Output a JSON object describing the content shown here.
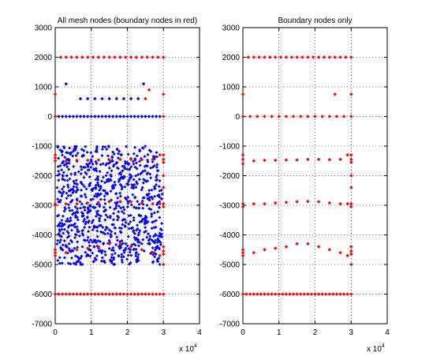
{
  "chart_data": [
    {
      "type": "scatter",
      "title": "All mesh nodes (boundary nodes in red)",
      "xlim": [
        0,
        4
      ],
      "ylim": [
        -7000,
        3000
      ],
      "x_exponent_label": "× 10^4",
      "x_multiplier_text": "x 10",
      "x_multiplier_exp": "4",
      "xticks": [
        0,
        1,
        2,
        3,
        4
      ],
      "yticks": [
        -7000,
        -6000,
        -5000,
        -4000,
        -3000,
        -2000,
        -1000,
        0,
        1000,
        2000,
        3000
      ],
      "grid": true,
      "series": [
        {
          "name": "",
          "color": "#0000ff",
          "marker": "diamond",
          "points": [
            [
              0.3,
              1100
            ],
            [
              2.45,
              1100
            ],
            [
              0.7,
              600
            ],
            [
              0.9,
              600
            ],
            [
              1.1,
              600
            ],
            [
              1.3,
              600
            ],
            [
              1.5,
              600
            ],
            [
              1.7,
              600
            ],
            [
              1.9,
              600
            ],
            [
              2.1,
              600
            ],
            [
              2.3,
              600
            ],
            [
              0.1,
              0
            ],
            [
              0.2,
              0
            ],
            [
              0.3,
              0
            ],
            [
              0.4,
              0
            ],
            [
              0.5,
              0
            ],
            [
              0.6,
              0
            ],
            [
              0.7,
              0
            ],
            [
              0.8,
              0
            ],
            [
              0.9,
              0
            ],
            [
              1.0,
              0
            ],
            [
              1.1,
              0
            ],
            [
              1.2,
              0
            ],
            [
              1.3,
              0
            ],
            [
              1.4,
              0
            ],
            [
              1.5,
              0
            ],
            [
              1.6,
              0
            ],
            [
              1.7,
              0
            ],
            [
              1.8,
              0
            ],
            [
              1.9,
              0
            ],
            [
              2.0,
              0
            ],
            [
              2.1,
              0
            ],
            [
              2.2,
              0
            ],
            [
              2.3,
              0
            ],
            [
              2.4,
              0
            ],
            [
              2.5,
              0
            ],
            [
              2.6,
              0
            ],
            [
              2.7,
              0
            ],
            [
              2.8,
              0
            ],
            [
              2.9,
              0
            ]
          ],
          "band": {
            "x_range": [
              0.05,
              2.97
            ],
            "y_range": [
              -5000,
              -1000
            ],
            "count": 900,
            "seed": 7
          }
        },
        {
          "name": "",
          "color": "#ff0000",
          "marker": "diamond",
          "points": [
            [
              0.0,
              750
            ],
            [
              3.0,
              750
            ],
            [
              2.6,
              900
            ],
            [
              2.5,
              600
            ],
            [
              0.15,
              2000
            ],
            [
              0.3,
              2000
            ],
            [
              0.45,
              2000
            ],
            [
              0.6,
              2000
            ],
            [
              0.75,
              2000
            ],
            [
              0.9,
              2000
            ],
            [
              1.05,
              2000
            ],
            [
              1.2,
              2000
            ],
            [
              1.35,
              2000
            ],
            [
              1.5,
              2000
            ],
            [
              1.65,
              2000
            ],
            [
              1.8,
              2000
            ],
            [
              1.95,
              2000
            ],
            [
              2.1,
              2000
            ],
            [
              2.25,
              2000
            ],
            [
              2.4,
              2000
            ],
            [
              2.55,
              2000
            ],
            [
              2.7,
              2000
            ],
            [
              2.85,
              2000
            ],
            [
              3.0,
              2000
            ],
            [
              0.0,
              0
            ],
            [
              3.0,
              0
            ],
            [
              0.0,
              -1400
            ],
            [
              0.0,
              -1500
            ],
            [
              0.0,
              -1300
            ],
            [
              3.0,
              -1300
            ],
            [
              3.0,
              -1450
            ],
            [
              3.0,
              -1550
            ],
            [
              0.3,
              -1500
            ],
            [
              0.6,
              -1480
            ],
            [
              0.9,
              -1480
            ],
            [
              1.2,
              -1470
            ],
            [
              1.5,
              -1470
            ],
            [
              1.8,
              -1450
            ],
            [
              2.1,
              -1450
            ],
            [
              2.4,
              -1460
            ],
            [
              2.7,
              -1450
            ],
            [
              2.9,
              -1300
            ],
            [
              3.0,
              -2000
            ],
            [
              3.0,
              -2400
            ],
            [
              0.0,
              -3000
            ],
            [
              0.0,
              -2950
            ],
            [
              3.0,
              -2950
            ],
            [
              3.0,
              -3050
            ],
            [
              0.3,
              -2950
            ],
            [
              0.6,
              -2950
            ],
            [
              0.9,
              -2920
            ],
            [
              1.2,
              -2900
            ],
            [
              1.5,
              -2880
            ],
            [
              1.8,
              -2870
            ],
            [
              2.1,
              -2880
            ],
            [
              2.4,
              -2920
            ],
            [
              2.7,
              -2950
            ],
            [
              2.9,
              -2950
            ],
            [
              0.0,
              -4500
            ],
            [
              0.0,
              -4600
            ],
            [
              0.0,
              -4700
            ],
            [
              3.0,
              -4400
            ],
            [
              3.0,
              -4550
            ],
            [
              3.0,
              -4650
            ],
            [
              0.3,
              -4600
            ],
            [
              0.6,
              -4500
            ],
            [
              0.9,
              -4450
            ],
            [
              1.2,
              -4400
            ],
            [
              1.5,
              -4300
            ],
            [
              1.8,
              -4300
            ],
            [
              2.1,
              -4400
            ],
            [
              2.4,
              -4500
            ],
            [
              2.7,
              -4600
            ],
            [
              2.9,
              -4700
            ],
            [
              3.0,
              -5000
            ],
            [
              0.0,
              -6000
            ],
            [
              0.1,
              -6000
            ],
            [
              0.2,
              -6000
            ],
            [
              0.3,
              -6000
            ],
            [
              0.4,
              -6000
            ],
            [
              0.5,
              -6000
            ],
            [
              0.6,
              -6000
            ],
            [
              0.7,
              -6000
            ],
            [
              0.8,
              -6000
            ],
            [
              0.9,
              -6000
            ],
            [
              1.0,
              -6000
            ],
            [
              1.1,
              -6000
            ],
            [
              1.2,
              -6000
            ],
            [
              1.3,
              -6000
            ],
            [
              1.4,
              -6000
            ],
            [
              1.5,
              -6000
            ],
            [
              1.6,
              -6000
            ],
            [
              1.7,
              -6000
            ],
            [
              1.8,
              -6000
            ],
            [
              1.9,
              -6000
            ],
            [
              2.0,
              -6000
            ],
            [
              2.1,
              -6000
            ],
            [
              2.2,
              -6000
            ],
            [
              2.3,
              -6000
            ],
            [
              2.4,
              -6000
            ],
            [
              2.5,
              -6000
            ],
            [
              2.6,
              -6000
            ],
            [
              2.7,
              -6000
            ],
            [
              2.8,
              -6000
            ],
            [
              2.9,
              -6000
            ],
            [
              3.0,
              -6000
            ]
          ]
        }
      ]
    },
    {
      "type": "scatter",
      "title": "Boundary nodes only",
      "xlim": [
        0,
        4
      ],
      "ylim": [
        -7000,
        3000
      ],
      "x_exponent_label": "× 10^4",
      "x_multiplier_text": "x 10",
      "x_multiplier_exp": "4",
      "xticks": [
        0,
        1,
        2,
        3,
        4
      ],
      "yticks": [
        -7000,
        -6000,
        -5000,
        -4000,
        -3000,
        -2000,
        -1000,
        0,
        1000,
        2000,
        3000
      ],
      "grid": true,
      "series": [
        {
          "name": "",
          "color": "#ff0000",
          "marker": "diamond",
          "points": [
            [
              0.0,
              750
            ],
            [
              3.0,
              750
            ],
            [
              2.55,
              750
            ],
            [
              0.15,
              2000
            ],
            [
              0.3,
              2000
            ],
            [
              0.45,
              2000
            ],
            [
              0.6,
              2000
            ],
            [
              0.75,
              2000
            ],
            [
              0.9,
              2000
            ],
            [
              1.05,
              2000
            ],
            [
              1.2,
              2000
            ],
            [
              1.35,
              2000
            ],
            [
              1.5,
              2000
            ],
            [
              1.65,
              2000
            ],
            [
              1.8,
              2000
            ],
            [
              1.95,
              2000
            ],
            [
              2.1,
              2000
            ],
            [
              2.25,
              2000
            ],
            [
              2.4,
              2000
            ],
            [
              2.55,
              2000
            ],
            [
              2.7,
              2000
            ],
            [
              2.85,
              2000
            ],
            [
              3.0,
              2000
            ],
            [
              0.0,
              0
            ],
            [
              0.2,
              0
            ],
            [
              0.4,
              0
            ],
            [
              0.6,
              0
            ],
            [
              0.8,
              0
            ],
            [
              1.0,
              0
            ],
            [
              1.2,
              0
            ],
            [
              1.4,
              0
            ],
            [
              1.6,
              0
            ],
            [
              1.8,
              0
            ],
            [
              2.0,
              0
            ],
            [
              2.2,
              0
            ],
            [
              2.4,
              0
            ],
            [
              2.6,
              0
            ],
            [
              2.8,
              0
            ],
            [
              3.0,
              0
            ],
            [
              0.0,
              -1300
            ],
            [
              0.0,
              -1450
            ],
            [
              0.0,
              -1600
            ],
            [
              3.0,
              -1300
            ],
            [
              3.0,
              -1450
            ],
            [
              3.0,
              -1550
            ],
            [
              0.3,
              -1500
            ],
            [
              0.6,
              -1480
            ],
            [
              0.9,
              -1480
            ],
            [
              1.2,
              -1470
            ],
            [
              1.5,
              -1470
            ],
            [
              1.8,
              -1450
            ],
            [
              2.1,
              -1450
            ],
            [
              2.4,
              -1460
            ],
            [
              2.7,
              -1450
            ],
            [
              2.9,
              -1300
            ],
            [
              3.0,
              -2000
            ],
            [
              3.0,
              -2400
            ],
            [
              0.0,
              -2950
            ],
            [
              0.0,
              -3050
            ],
            [
              3.0,
              -2950
            ],
            [
              3.0,
              -3050
            ],
            [
              0.3,
              -2950
            ],
            [
              0.6,
              -2950
            ],
            [
              0.9,
              -2920
            ],
            [
              1.2,
              -2900
            ],
            [
              1.5,
              -2880
            ],
            [
              1.8,
              -2870
            ],
            [
              2.1,
              -2880
            ],
            [
              2.4,
              -2920
            ],
            [
              2.7,
              -2950
            ],
            [
              2.9,
              -2950
            ],
            [
              0.0,
              -4500
            ],
            [
              0.0,
              -4600
            ],
            [
              0.0,
              -4700
            ],
            [
              3.0,
              -4400
            ],
            [
              3.0,
              -4550
            ],
            [
              3.0,
              -4650
            ],
            [
              0.3,
              -4600
            ],
            [
              0.6,
              -4500
            ],
            [
              0.9,
              -4450
            ],
            [
              1.2,
              -4400
            ],
            [
              1.5,
              -4300
            ],
            [
              1.8,
              -4300
            ],
            [
              2.1,
              -4400
            ],
            [
              2.4,
              -4500
            ],
            [
              2.7,
              -4600
            ],
            [
              2.9,
              -4700
            ],
            [
              3.0,
              -5000
            ],
            [
              0.0,
              -6000
            ],
            [
              0.1,
              -6000
            ],
            [
              0.2,
              -6000
            ],
            [
              0.3,
              -6000
            ],
            [
              0.4,
              -6000
            ],
            [
              0.5,
              -6000
            ],
            [
              0.6,
              -6000
            ],
            [
              0.7,
              -6000
            ],
            [
              0.8,
              -6000
            ],
            [
              0.9,
              -6000
            ],
            [
              1.0,
              -6000
            ],
            [
              1.1,
              -6000
            ],
            [
              1.2,
              -6000
            ],
            [
              1.3,
              -6000
            ],
            [
              1.4,
              -6000
            ],
            [
              1.5,
              -6000
            ],
            [
              1.6,
              -6000
            ],
            [
              1.7,
              -6000
            ],
            [
              1.8,
              -6000
            ],
            [
              1.9,
              -6000
            ],
            [
              2.0,
              -6000
            ],
            [
              2.1,
              -6000
            ],
            [
              2.2,
              -6000
            ],
            [
              2.3,
              -6000
            ],
            [
              2.4,
              -6000
            ],
            [
              2.5,
              -6000
            ],
            [
              2.6,
              -6000
            ],
            [
              2.7,
              -6000
            ],
            [
              2.8,
              -6000
            ],
            [
              2.9,
              -6000
            ],
            [
              3.0,
              -6000
            ]
          ]
        }
      ]
    }
  ]
}
